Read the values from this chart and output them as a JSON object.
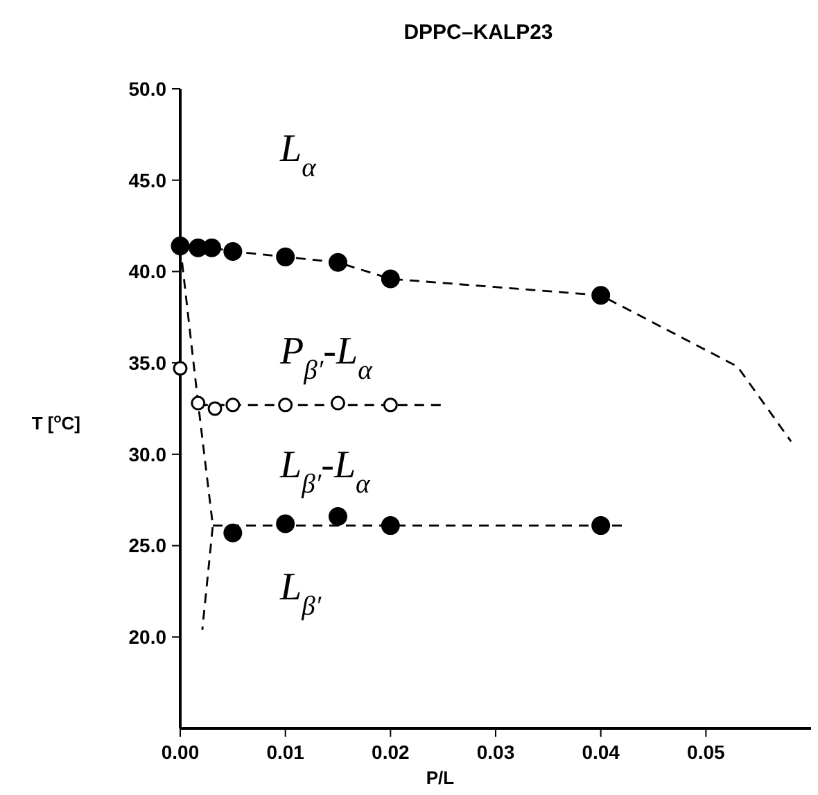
{
  "chart_data": {
    "type": "scatter",
    "title": "DPPC–KALP23",
    "xlabel": "P/L",
    "ylabel": "T [$^{o}$C]",
    "xlim": [
      0,
      0.06
    ],
    "ylim": [
      15,
      50
    ],
    "xticks": [
      {
        "value": 0,
        "label": "0.00"
      },
      {
        "value": 0.01,
        "label": "0.01"
      },
      {
        "value": 0.02,
        "label": "0.02"
      },
      {
        "value": 0.03,
        "label": "0.03"
      },
      {
        "value": 0.04,
        "label": "0.04"
      },
      {
        "value": 0.05,
        "label": "0.05"
      }
    ],
    "yticks": [
      {
        "value": 20,
        "label": "20.0"
      },
      {
        "value": 25,
        "label": "25.0"
      },
      {
        "value": 30,
        "label": "30.0"
      },
      {
        "value": 35,
        "label": "35.0"
      },
      {
        "value": 40,
        "label": "40.0"
      },
      {
        "value": 45,
        "label": "45.0"
      },
      {
        "value": 50,
        "label": "50.0"
      }
    ],
    "grid": false,
    "series": [
      {
        "type": "line",
        "line_style": "dashed",
        "marker": "none",
        "color": "#000000",
        "x": [
          0,
          0.0017,
          0.003,
          0.005,
          0.01,
          0.015,
          0.02,
          0.04,
          0.053,
          0.0581
        ],
        "values": [
          41.4,
          41.3,
          41.3,
          41.1,
          40.8,
          40.5,
          39.6,
          38.7,
          34.8,
          30.7
        ]
      },
      {
        "type": "line",
        "line_style": "dashed",
        "marker": "none",
        "color": "#000000",
        "x": [
          0,
          0.0017,
          0.0031,
          0.0021
        ],
        "values": [
          41.4,
          32.8,
          26.1,
          20.4
        ]
      },
      {
        "type": "line",
        "line_style": "dashed",
        "marker": "none",
        "color": "#000000",
        "x": [
          0.0017,
          0.025
        ],
        "values": [
          32.7,
          32.7
        ]
      },
      {
        "type": "line",
        "line_style": "dashed",
        "marker": "none",
        "color": "#000000",
        "x": [
          0.0031,
          0.042
        ],
        "values": [
          26.1,
          26.1
        ]
      },
      {
        "marker": "circle",
        "color": "#000000",
        "x": [
          0,
          0.0017,
          0.003,
          0.005,
          0.01,
          0.015,
          0.02,
          0.04
        ],
        "values": [
          41.4,
          41.3,
          41.3,
          41.1,
          40.8,
          40.5,
          39.6,
          38.7
        ]
      },
      {
        "marker": "circle",
        "color": "#ffffff",
        "x": [
          0,
          0.0017,
          0.0033,
          0.005,
          0.01,
          0.015,
          0.02
        ],
        "values": [
          34.7,
          32.8,
          32.5,
          32.7,
          32.7,
          32.8,
          32.7
        ]
      },
      {
        "marker": "circle",
        "color": "#000000",
        "x": [
          0.005,
          0.01,
          0.015,
          0.02,
          0.04
        ],
        "values": [
          25.7,
          26.2,
          26.6,
          26.1,
          26.1
        ]
      }
    ],
    "annotations": [
      "L$_{α}$",
      "P$_{β′}$-L$_{α}$",
      "L$_{β′}$-L$_{α}$",
      "L$_{β′}$"
    ]
  }
}
